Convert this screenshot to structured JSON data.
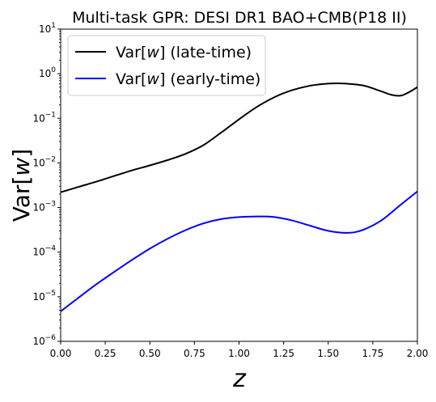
{
  "chart_data": {
    "type": "line",
    "title": "Multi-task GPR: DESI DR1 BAO+CMB(P18 II)",
    "xlabel": "z",
    "ylabel": "Var[w]",
    "xlim": [
      0.0,
      2.0
    ],
    "ylim": [
      1e-06,
      10
    ],
    "yscale": "log",
    "grid": false,
    "legend_position": "top-left",
    "x_ticks": [
      0.0,
      0.25,
      0.5,
      0.75,
      1.0,
      1.25,
      1.5,
      1.75,
      2.0
    ],
    "x_tick_labels": [
      "0.00",
      "0.25",
      "0.50",
      "0.75",
      "1.00",
      "1.25",
      "1.50",
      "1.75",
      "2.00"
    ],
    "y_tick_exponents": [
      -6,
      -5,
      -4,
      -3,
      -2,
      -1,
      0,
      1
    ],
    "y_tick_base": "10",
    "series": [
      {
        "name": "Var[w] (late-time)",
        "name_parts": [
          "Var[",
          "w",
          "] (late-time)"
        ],
        "color": "#000000",
        "x": [
          0.0,
          0.1,
          0.2,
          0.3,
          0.4,
          0.5,
          0.6,
          0.7,
          0.8,
          0.9,
          1.0,
          1.1,
          1.2,
          1.3,
          1.4,
          1.5,
          1.55,
          1.6,
          1.7,
          1.8,
          1.85,
          1.9,
          1.95,
          2.0
        ],
        "y": [
          0.0022,
          0.0029,
          0.0038,
          0.0051,
          0.0068,
          0.0088,
          0.0116,
          0.016,
          0.025,
          0.048,
          0.095,
          0.18,
          0.3,
          0.43,
          0.54,
          0.6,
          0.61,
          0.6,
          0.54,
          0.4,
          0.34,
          0.32,
          0.38,
          0.5
        ]
      },
      {
        "name": "Var[w] (early-time)",
        "name_parts": [
          "Var[",
          "w",
          "] (early-time)"
        ],
        "color": "#0000ff",
        "x": [
          0.0,
          0.1,
          0.2,
          0.3,
          0.4,
          0.5,
          0.6,
          0.7,
          0.8,
          0.9,
          1.0,
          1.1,
          1.15,
          1.2,
          1.3,
          1.4,
          1.5,
          1.6,
          1.65,
          1.7,
          1.8,
          1.9,
          2.0
        ],
        "y": [
          4.7e-06,
          9.5e-06,
          1.9e-05,
          3.6e-05,
          6.7e-05,
          0.00012,
          0.0002,
          0.00031,
          0.00044,
          0.00055,
          0.00061,
          0.00063,
          0.00063,
          0.00061,
          0.00051,
          0.00039,
          0.0003,
          0.00027,
          0.00028,
          0.00032,
          0.00052,
          0.0011,
          0.0023
        ]
      }
    ]
  }
}
